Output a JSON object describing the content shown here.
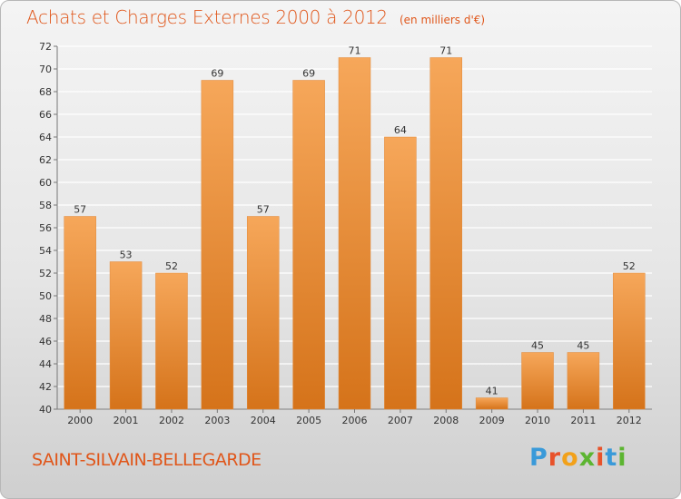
{
  "header": {
    "title": "Achats et Charges Externes 2000 à 2012",
    "unit": "(en milliers d'€)"
  },
  "footer": {
    "city": "SAINT-SILVAIN-BELLEGARDE",
    "brand": "Proxiti",
    "brand_colors": [
      "#3a9ad9",
      "#e8522a",
      "#f2a11a",
      "#5cb531",
      "#e8522a",
      "#3a9ad9",
      "#5cb531"
    ]
  },
  "colors": {
    "bar_light": "#f6a75a",
    "bar_dark": "#d5731a",
    "accent": "#e0561a",
    "grid": "#ffffff"
  },
  "chart_data": {
    "type": "bar",
    "title": "Achats et Charges Externes 2000 à 2012",
    "categories": [
      "2000",
      "2001",
      "2002",
      "2003",
      "2004",
      "2005",
      "2006",
      "2007",
      "2008",
      "2009",
      "2010",
      "2011",
      "2012"
    ],
    "values": [
      57,
      53,
      52,
      69,
      57,
      69,
      71,
      64,
      71,
      41,
      45,
      45,
      52
    ],
    "ylim": [
      40,
      72
    ],
    "yticks": [
      40,
      42,
      44,
      46,
      48,
      50,
      52,
      54,
      56,
      58,
      60,
      62,
      64,
      66,
      68,
      70,
      72
    ],
    "grid": true,
    "xlabel": "",
    "ylabel": ""
  }
}
